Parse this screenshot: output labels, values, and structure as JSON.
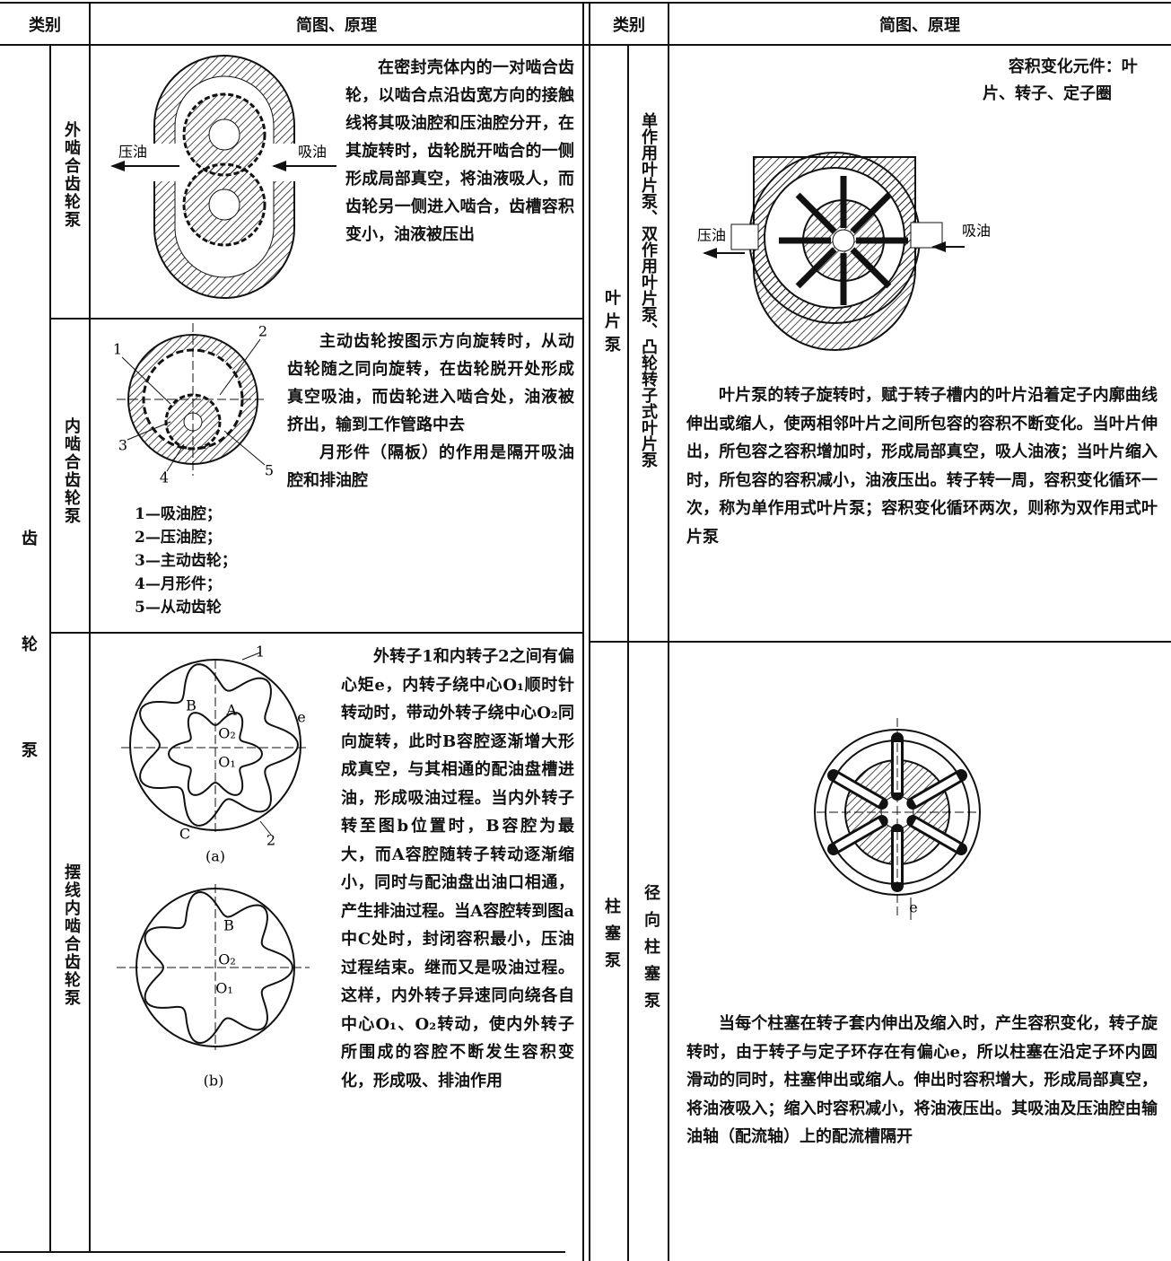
{
  "header": {
    "left_category": "类别",
    "left_diagram": "简图、原理",
    "right_category": "类别",
    "right_diagram": "简图、原理"
  },
  "gear_pump": {
    "group": "齿轮泵",
    "external": {
      "name": "外啮合齿轮泵",
      "labels": [
        "压油",
        "吸油"
      ],
      "text": "在密封壳体内的一对啮合齿轮，以啮合点沿齿宽方向的接触线将其吸油腔和压油腔分开，在其旋转时，齿轮脱开啮合的一侧形成局部真空，将油液吸人，而齿轮另一侧进入啮合，齿槽容积变小，油液被压出"
    },
    "internal": {
      "name": "内啮合齿轮泵",
      "labels": [
        "1",
        "2",
        "3",
        "4",
        "5"
      ],
      "legend": [
        "1—吸油腔；",
        "2—压油腔；",
        "3—主动齿轮；",
        "4—月形件；",
        "5—从动齿轮"
      ],
      "text": [
        "主动齿轮按图示方向旋转时，从动齿轮随之同向旋转，在齿轮脱开处形成真空吸油，而齿轮进入啮合处，油液被挤出，输到工作管路中去",
        "月形件（隔板）的作用是隔开吸油腔和排油腔"
      ]
    },
    "cycloid": {
      "name": "摆线内啮合齿轮泵",
      "figure_a": [
        "1",
        "B",
        "A",
        "e",
        "O₂",
        "O₁",
        "C",
        "2",
        "(a)"
      ],
      "figure_b": [
        "B",
        "O₂",
        "O₁",
        "(b)"
      ],
      "text": "外转子1和内转子2之间有偏心矩e，内转子绕中心O₁顺时针转动时，带动外转子绕中心O₂同向旋转，此时B容腔逐渐增大形成真空，与其相通的配油盘槽进油，形成吸油过程。当内外转子转至图b位置时，B容腔为最大，而A容腔随转子转动逐渐缩小，同时与配油盘出油口相通，产生排油过程。当A容腔转到图a中C处时，封闭容积最小，压油过程结束。继而又是吸油过程。这样，内外转子异速同向绕各自中心O₁、O₂转动，使内外转子所围成的容腔不断发生容积变化，形成吸、排油作用"
    }
  },
  "vane_pump": {
    "group": "叶片泵",
    "name": "单作用叶片泵、双作用叶片泵、凸轮转子式叶片泵",
    "note": "容积变化元件：叶片、转子、定子圈",
    "labels": [
      "压油",
      "吸油"
    ],
    "text": "叶片泵的转子旋转时，赋于转子槽内的叶片沿着定子内廓曲线伸出或缩人，使两相邻叶片之间所包容的容积不断变化。当叶片伸出，所包容之容积增加时，形成局部真空，吸人油液；当叶片缩入时，所包容的容积减小，油液压出。转子转一周，容积变化循环一次，称为单作用式叶片泵；容积变化循环两次，则称为双作用式叶片泵"
  },
  "piston_pump": {
    "group": "柱塞泵",
    "name": "径向柱塞泵",
    "labels": [
      "e"
    ],
    "text": "当每个柱塞在转子套内伸出及缩入时，产生容积变化，转子旋转时，由于转子与定子环存在有偏心e，所以柱塞在沿定子环内圆滑动的同时，柱塞伸出或缩人。伸出时容积增大，形成局部真空，将油液吸入；缩入时容积减小，将油液压出。其吸油及压油腔由输油轴（配流轴）上的配流槽隔开"
  }
}
